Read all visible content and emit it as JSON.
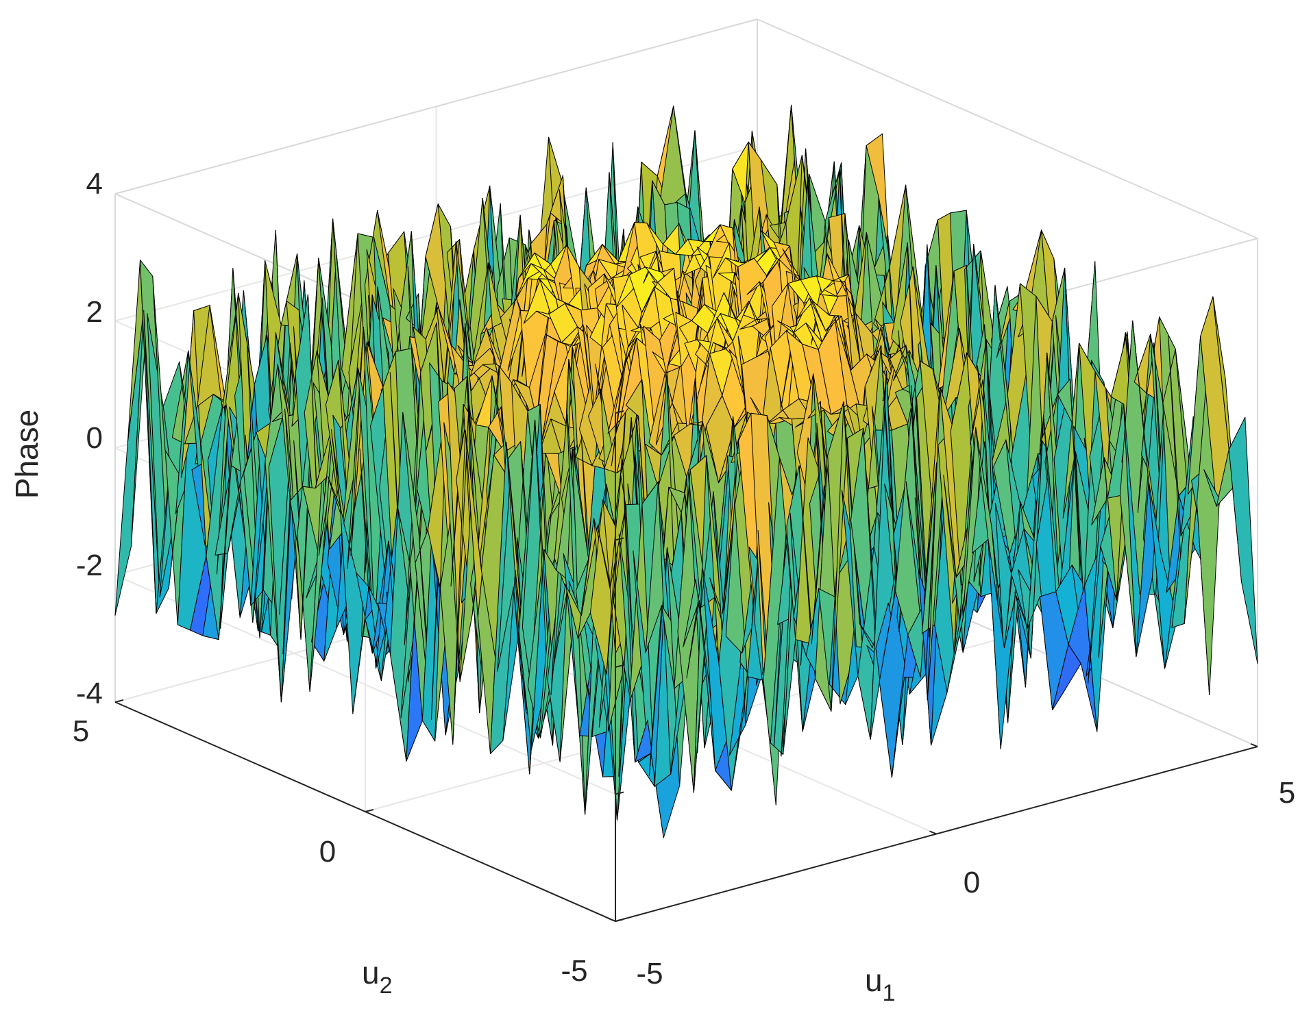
{
  "chart_data": {
    "type": "surface",
    "zlabel": "Phase",
    "xlabel": {
      "base": "u",
      "sub": "1"
    },
    "ylabel": {
      "base": "u",
      "sub": "2"
    },
    "xlim": [
      -5,
      5
    ],
    "ylim": [
      -5,
      5
    ],
    "zlim": [
      -4,
      4
    ],
    "x_ticks": [
      "-5",
      "0",
      "5"
    ],
    "y_ticks": [
      "-5",
      "0",
      "5"
    ],
    "z_ticks": [
      "4",
      "2",
      "0",
      "-2",
      "-4"
    ],
    "grid": true,
    "colormap": "parula",
    "colormap_stops": [
      "#3e26a8",
      "#2f6ffb",
      "#13b1d3",
      "#4ac08b",
      "#b4c033",
      "#fcbd3e",
      "#f9fb14"
    ],
    "edge_color": "#000000",
    "grid_resolution": 40,
    "surface_description": "noisy wrapped phase in [-pi, pi]; central disc (radius ~2.2) near +3, ring near +1.5 at radius ~2.6, outer region random"
  }
}
